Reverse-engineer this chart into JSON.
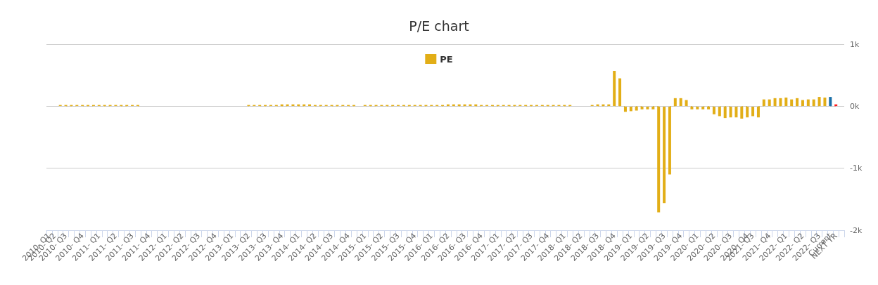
{
  "chart_data": {
    "type": "bar",
    "title": "P/E chart",
    "categories": [
      "2010- Q1",
      "2010- Q2",
      null,
      "2010- Q3",
      null,
      null,
      "2010- Q4",
      null,
      null,
      "2011- Q1",
      null,
      null,
      "2011- Q2",
      null,
      null,
      "2011- Q3",
      null,
      null,
      "2011- Q4",
      null,
      null,
      "2012- Q1",
      null,
      null,
      "2012- Q2",
      null,
      null,
      "2012- Q3",
      null,
      null,
      "2012- Q4",
      null,
      null,
      "2013- Q1",
      null,
      null,
      "2013- Q2",
      null,
      null,
      "2013- Q3",
      null,
      null,
      "2013- Q4",
      null,
      null,
      "2014- Q1",
      null,
      null,
      "2014- Q2",
      null,
      null,
      "2014- Q3",
      null,
      null,
      "2014- Q4",
      null,
      null,
      "2015- Q1",
      null,
      null,
      "2015- Q2",
      null,
      null,
      "2015- Q3",
      null,
      null,
      "2015- Q4",
      null,
      null,
      "2016- Q1",
      null,
      null,
      "2016- Q2",
      null,
      null,
      "2016- Q3",
      null,
      null,
      "2016- Q4",
      null,
      null,
      "2017- Q1",
      null,
      null,
      "2017- Q2",
      null,
      null,
      "2017- Q3",
      null,
      null,
      "2017- Q4",
      null,
      null,
      "2018- Q1",
      null,
      null,
      "2018- Q2",
      null,
      null,
      "2018- Q3",
      null,
      null,
      "2018- Q4",
      null,
      null,
      "2019- Q1",
      null,
      null,
      "2019- Q2",
      null,
      null,
      "2019- Q3",
      null,
      null,
      "2019- Q4",
      null,
      null,
      "2020- Q1",
      null,
      null,
      "2020- Q2",
      null,
      null,
      "2020- Q3",
      null,
      null,
      "2020- Q4",
      "2021- Q3",
      null,
      null,
      "2021- Q4",
      null,
      null,
      "2022- Q1",
      null,
      null,
      "2022- Q2",
      null,
      null,
      "2022- Q3",
      null,
      "Current",
      "NEXT YR",
      null
    ],
    "series": [
      {
        "name": "PE",
        "color": "#e2ae17",
        "colors": [
          "#e2ae17",
          "#e2ae17",
          "#e2ae17",
          "#e2ae17",
          "#e2ae17",
          "#e2ae17",
          "#e2ae17",
          "#e2ae17",
          "#e2ae17",
          "#e2ae17",
          "#e2ae17",
          "#e2ae17",
          "#e2ae17",
          "#e2ae17",
          "#e2ae17",
          "#e2ae17",
          "#e2ae17",
          "#e2ae17",
          "#e2ae17",
          "#e2ae17",
          "#e2ae17",
          "#e2ae17",
          "#e2ae17",
          "#e2ae17",
          "#e2ae17",
          "#e2ae17",
          "#e2ae17",
          "#e2ae17",
          "#e2ae17",
          "#e2ae17",
          "#e2ae17",
          "#e2ae17",
          "#e2ae17",
          "#e2ae17",
          "#e2ae17",
          "#e2ae17",
          "#e2ae17",
          "#e2ae17",
          "#e2ae17",
          "#e2ae17",
          "#e2ae17",
          "#e2ae17",
          "#e2ae17",
          "#e2ae17",
          "#e2ae17",
          "#e2ae17",
          "#e2ae17",
          "#e2ae17",
          "#e2ae17",
          "#e2ae17",
          "#e2ae17",
          "#e2ae17",
          "#e2ae17",
          "#e2ae17",
          "#e2ae17",
          "#e2ae17",
          "#e2ae17",
          "#e2ae17",
          "#e2ae17",
          "#e2ae17",
          "#e2ae17",
          "#e2ae17",
          "#e2ae17",
          "#e2ae17",
          "#e2ae17",
          "#e2ae17",
          "#e2ae17",
          "#e2ae17",
          "#e2ae17",
          "#e2ae17",
          "#e2ae17",
          "#e2ae17",
          "#e2ae17",
          "#e2ae17",
          "#e2ae17",
          "#e2ae17",
          "#e2ae17",
          "#e2ae17",
          "#e2ae17",
          "#e2ae17",
          "#e2ae17",
          "#e2ae17",
          "#e2ae17",
          "#e2ae17",
          "#e2ae17",
          "#e2ae17",
          "#e2ae17",
          "#e2ae17",
          "#e2ae17",
          "#e2ae17",
          "#e2ae17",
          "#e2ae17",
          "#e2ae17",
          "#e2ae17",
          "#e2ae17",
          "#e2ae17",
          "#e2ae17",
          "#e2ae17",
          "#e2ae17",
          "#e2ae17",
          "#e2ae17",
          "#e2ae17",
          "#e2ae17",
          "#e2ae17",
          "#e2ae17",
          "#e2ae17",
          "#e2ae17",
          "#e2ae17",
          "#e2ae17",
          "#e2ae17",
          "#e2ae17",
          "#e2ae17",
          "#e2ae17",
          "#e2ae17",
          "#e2ae17",
          "#e2ae17",
          "#e2ae17",
          "#e2ae17",
          "#e2ae17",
          "#e2ae17",
          "#e2ae17",
          "#e2ae17",
          "#e2ae17",
          "#e2ae17",
          "#e2ae17",
          "#e2ae17",
          "#e2ae17",
          "#e2ae17",
          "#e2ae17",
          "#e2ae17",
          "#e2ae17",
          "#e2ae17",
          "#e2ae17",
          "#e2ae17",
          "#e2ae17",
          "#e2ae17",
          "#e2ae17",
          "#e2ae17",
          "#e2ae17",
          "#e2ae17",
          "#e2ae17",
          "#1a6fa8",
          "#ff1a1a",
          "#e2ae17"
        ],
        "values": [
          null,
          null,
          20,
          20,
          20,
          20,
          20,
          20,
          20,
          20,
          20,
          20,
          20,
          20,
          20,
          20,
          20,
          null,
          null,
          null,
          null,
          null,
          null,
          null,
          null,
          null,
          null,
          null,
          null,
          null,
          null,
          null,
          null,
          null,
          null,
          null,
          20,
          20,
          20,
          20,
          20,
          20,
          30,
          30,
          30,
          30,
          30,
          30,
          20,
          20,
          20,
          20,
          20,
          20,
          20,
          20,
          null,
          20,
          20,
          20,
          20,
          20,
          20,
          20,
          20,
          20,
          20,
          20,
          20,
          20,
          20,
          20,
          30,
          30,
          30,
          30,
          30,
          30,
          20,
          20,
          20,
          20,
          20,
          20,
          20,
          20,
          20,
          20,
          20,
          20,
          20,
          20,
          20,
          20,
          20,
          null,
          null,
          null,
          20,
          30,
          30,
          30,
          570,
          450,
          -90,
          -80,
          -70,
          -50,
          -50,
          -50,
          -1710,
          -1560,
          -1100,
          130,
          130,
          100,
          -50,
          -50,
          -50,
          -50,
          -130,
          -160,
          -190,
          -180,
          -180,
          -200,
          -180,
          -160,
          -180,
          110,
          110,
          130,
          130,
          140,
          110,
          130,
          100,
          110,
          110,
          150,
          140,
          150,
          30,
          null
        ]
      }
    ],
    "ylim": [
      -2000,
      1000
    ],
    "yticks": [
      {
        "value": -2000,
        "label": "-2k"
      },
      {
        "value": -1000,
        "label": "-1k"
      },
      {
        "value": 0,
        "label": "0k"
      },
      {
        "value": 1000,
        "label": "1k"
      }
    ],
    "ref_lines": [
      {
        "axis": "y",
        "value": 0,
        "color": "#cccccc",
        "line_style": "dashed"
      }
    ],
    "grid": "y",
    "legend": "top"
  }
}
